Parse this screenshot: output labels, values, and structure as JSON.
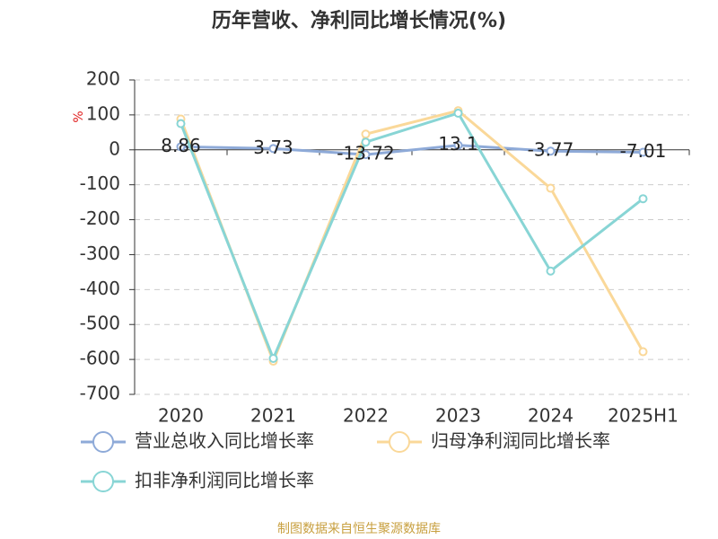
{
  "chart_data": {
    "type": "line",
    "title": "历年营收、净利同比增长情况(%)",
    "y_label": "%",
    "categories": [
      "2020",
      "2021",
      "2022",
      "2023",
      "2024",
      "2025H1"
    ],
    "series": [
      {
        "name": "营业总收入同比增长率",
        "color": "#8eaad8",
        "values": [
          8.86,
          3.73,
          -13.72,
          13.1,
          -3.77,
          -7.01
        ],
        "show_labels": true
      },
      {
        "name": "归母净利润同比增长率",
        "color": "#fad899",
        "values": [
          88,
          -605,
          45,
          112,
          -110,
          -578
        ]
      },
      {
        "name": "扣非净利润同比增长率",
        "color": "#88d5d5",
        "values": [
          75,
          -597,
          22,
          105,
          -347,
          -140
        ]
      }
    ],
    "ylim": [
      -700,
      200
    ],
    "yticks": [
      200,
      100,
      0,
      -100,
      -200,
      -300,
      -400,
      -500,
      -600,
      -700
    ],
    "grid": true,
    "source": "制图数据来自恒生聚源数据库"
  }
}
